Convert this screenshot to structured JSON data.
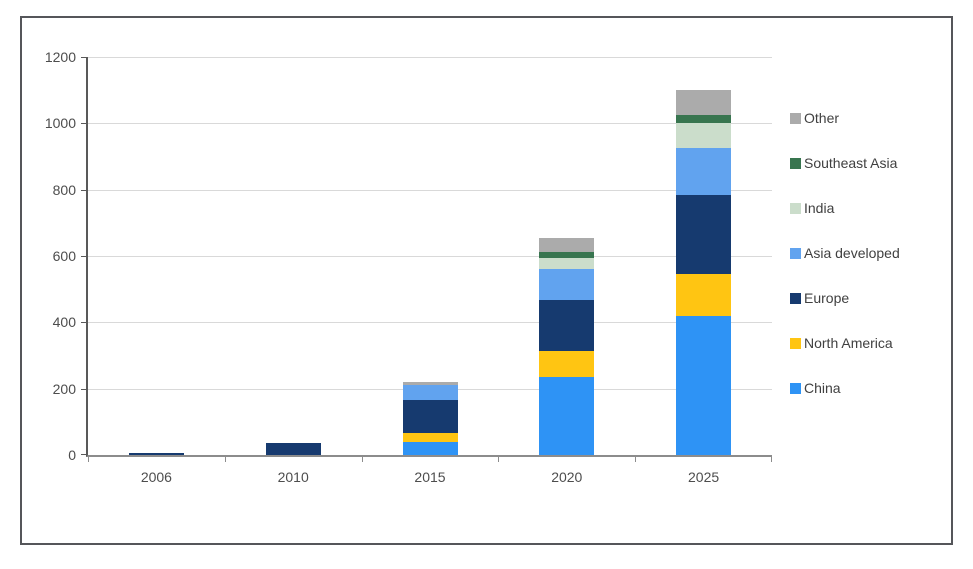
{
  "chart_data": {
    "type": "bar",
    "stacked": true,
    "title": "",
    "xlabel": "",
    "ylabel": "",
    "categories": [
      "2006",
      "2010",
      "2015",
      "2020",
      "2025"
    ],
    "series": [
      {
        "name": "China",
        "color": "#2E93F5",
        "values": [
          0,
          0,
          40,
          235,
          420
        ]
      },
      {
        "name": "North America",
        "color": "#FFC512",
        "values": [
          0,
          0,
          25,
          78,
          125
        ]
      },
      {
        "name": "Europe",
        "color": "#163A6F",
        "values": [
          5,
          35,
          100,
          155,
          240
        ]
      },
      {
        "name": "Asia developed",
        "color": "#61A3EF",
        "values": [
          0,
          0,
          45,
          93,
          140
        ]
      },
      {
        "name": "India",
        "color": "#CBDDCB",
        "values": [
          0,
          0,
          0,
          32,
          75
        ]
      },
      {
        "name": "Southeast Asia",
        "color": "#38754F",
        "values": [
          0,
          0,
          0,
          20,
          25
        ]
      },
      {
        "name": "Other",
        "color": "#ABABAB",
        "values": [
          0,
          0,
          10,
          41,
          77
        ]
      }
    ],
    "legend_order": [
      "Other",
      "Southeast Asia",
      "India",
      "Asia developed",
      "Europe",
      "North America",
      "China"
    ],
    "legend_position": "right",
    "ylim": [
      0,
      1200
    ],
    "yticks": [
      0,
      200,
      400,
      600,
      800,
      1000,
      1200
    ],
    "grid": true,
    "colors": {
      "frame_border": "#55565a",
      "gridline": "#d9d9d9",
      "y_axis": "#595959",
      "x_axis": "#8c8c8c",
      "label_text": "#4d4d4d",
      "legend_text": "#404040",
      "background": "#ffffff"
    }
  }
}
